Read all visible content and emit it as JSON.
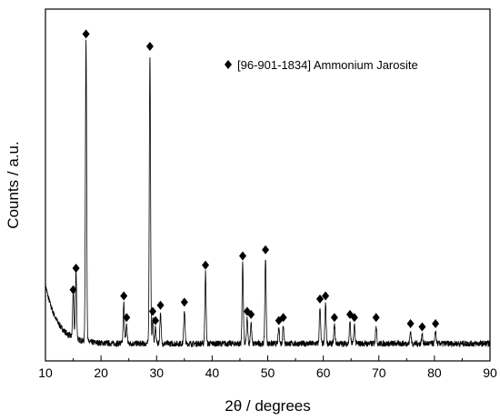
{
  "chart_data": {
    "type": "line",
    "title": "",
    "xlabel": "2θ / degrees",
    "ylabel": "Counts / a.u.",
    "xlim": [
      10,
      90
    ],
    "x_ticks": [
      10,
      20,
      30,
      40,
      50,
      60,
      70,
      80,
      90
    ],
    "y_ticks_labeled": false,
    "grid": false,
    "legend_position": "top-right",
    "legend": {
      "marker": "diamond",
      "label": "[96-901-1834] Ammonium Jarosite"
    },
    "line_color": "#000000",
    "marker_color": "#000000",
    "series": [
      {
        "name": "",
        "peaks": [
          {
            "x": 15.0,
            "y": 0.16
          },
          {
            "x": 15.5,
            "y": 0.23
          },
          {
            "x": 17.3,
            "y": 0.99
          },
          {
            "x": 24.1,
            "y": 0.14
          },
          {
            "x": 24.6,
            "y": 0.07
          },
          {
            "x": 28.8,
            "y": 0.95
          },
          {
            "x": 29.3,
            "y": 0.09
          },
          {
            "x": 29.8,
            "y": 0.06
          },
          {
            "x": 30.7,
            "y": 0.11
          },
          {
            "x": 35.0,
            "y": 0.12
          },
          {
            "x": 38.8,
            "y": 0.24
          },
          {
            "x": 45.5,
            "y": 0.27
          },
          {
            "x": 46.3,
            "y": 0.09
          },
          {
            "x": 47.0,
            "y": 0.08
          },
          {
            "x": 49.6,
            "y": 0.29
          },
          {
            "x": 52.0,
            "y": 0.06
          },
          {
            "x": 52.8,
            "y": 0.07
          },
          {
            "x": 59.4,
            "y": 0.13
          },
          {
            "x": 60.4,
            "y": 0.14
          },
          {
            "x": 62.0,
            "y": 0.07
          },
          {
            "x": 64.8,
            "y": 0.08
          },
          {
            "x": 65.6,
            "y": 0.07
          },
          {
            "x": 69.5,
            "y": 0.07
          },
          {
            "x": 75.7,
            "y": 0.05
          },
          {
            "x": 77.8,
            "y": 0.04
          },
          {
            "x": 80.2,
            "y": 0.05
          }
        ]
      }
    ]
  }
}
